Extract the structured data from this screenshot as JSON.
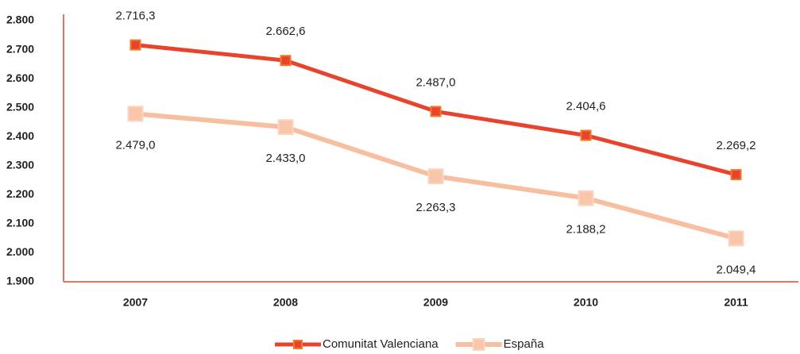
{
  "chart_data": {
    "type": "line",
    "categories": [
      "2007",
      "2008",
      "2009",
      "2010",
      "2011"
    ],
    "series": [
      {
        "name": "Comunitat Valenciana",
        "color": "#e8432c",
        "marker_color": "#f07a2a",
        "values": [
          2716.3,
          2662.6,
          2487.0,
          2404.6,
          2269.2
        ],
        "value_labels": [
          "2.716,3",
          "2.662,6",
          "2.487,0",
          "2.404,6",
          "2.269,2"
        ]
      },
      {
        "name": "España",
        "color": "#f7bfa0",
        "marker_color": "#f9c6ab",
        "values": [
          2479.0,
          2433.0,
          2263.3,
          2188.2,
          2049.4
        ],
        "value_labels": [
          "2.479,0",
          "2.433,0",
          "2.263,3",
          "2.188,2",
          "2.049,4"
        ]
      }
    ],
    "ylim": [
      1900,
      2800
    ],
    "yticks": [
      {
        "value": 1900,
        "label": "1.900"
      },
      {
        "value": 2000,
        "label": "2.000"
      },
      {
        "value": 2100,
        "label": "2.100"
      },
      {
        "value": 2200,
        "label": "2.200"
      },
      {
        "value": 2300,
        "label": "2.300"
      },
      {
        "value": 2400,
        "label": "2.400"
      },
      {
        "value": 2500,
        "label": "2.500"
      },
      {
        "value": 2600,
        "label": "2.600"
      },
      {
        "value": 2700,
        "label": "2.700"
      },
      {
        "value": 2800,
        "label": "2.800"
      }
    ],
    "grid": false,
    "legend": "bottom",
    "axis_color": "#e8432c"
  }
}
